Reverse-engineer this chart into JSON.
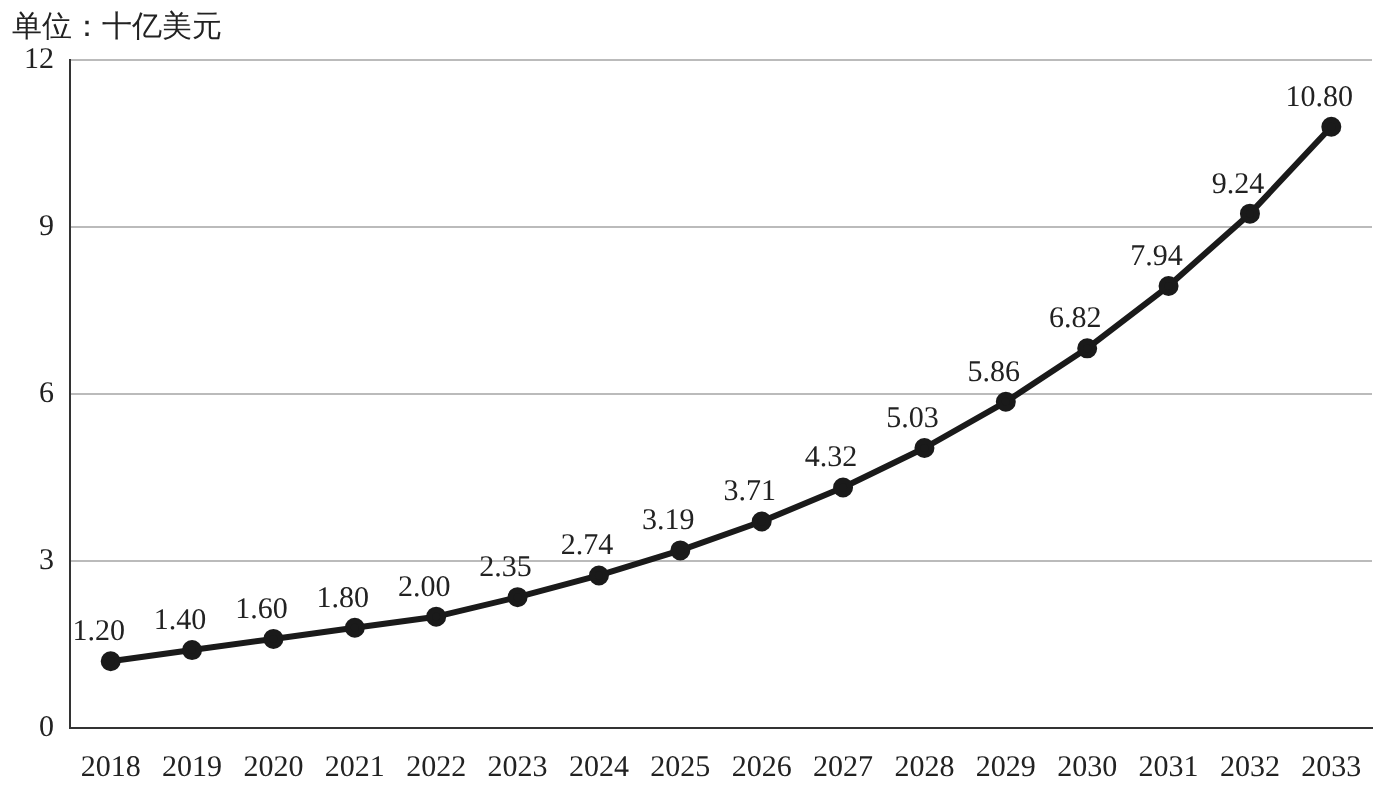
{
  "chart_data": {
    "type": "line",
    "ylabel": "单位：十亿美元",
    "categories": [
      "2018",
      "2019",
      "2020",
      "2021",
      "2022",
      "2023",
      "2024",
      "2025",
      "2026",
      "2027",
      "2028",
      "2029",
      "2030",
      "2031",
      "2032",
      "2033"
    ],
    "series": [
      {
        "color": "#1a1a1a",
        "values": [
          1.2,
          1.4,
          1.6,
          1.8,
          2.0,
          2.35,
          2.74,
          3.19,
          3.71,
          4.32,
          5.03,
          5.86,
          6.82,
          7.94,
          9.24,
          10.8
        ],
        "value_labels": [
          "1.20",
          "1.40",
          "1.60",
          "1.80",
          "2.00",
          "2.35",
          "2.74",
          "3.19",
          "3.71",
          "4.32",
          "5.03",
          "5.86",
          "6.82",
          "7.94",
          "9.24",
          "10.80"
        ]
      }
    ],
    "ylim": [
      0,
      12
    ],
    "yticks": [
      0,
      3,
      6,
      9,
      12
    ],
    "grid": "y",
    "legend": false,
    "marker": "circle",
    "line_style": "solid"
  }
}
